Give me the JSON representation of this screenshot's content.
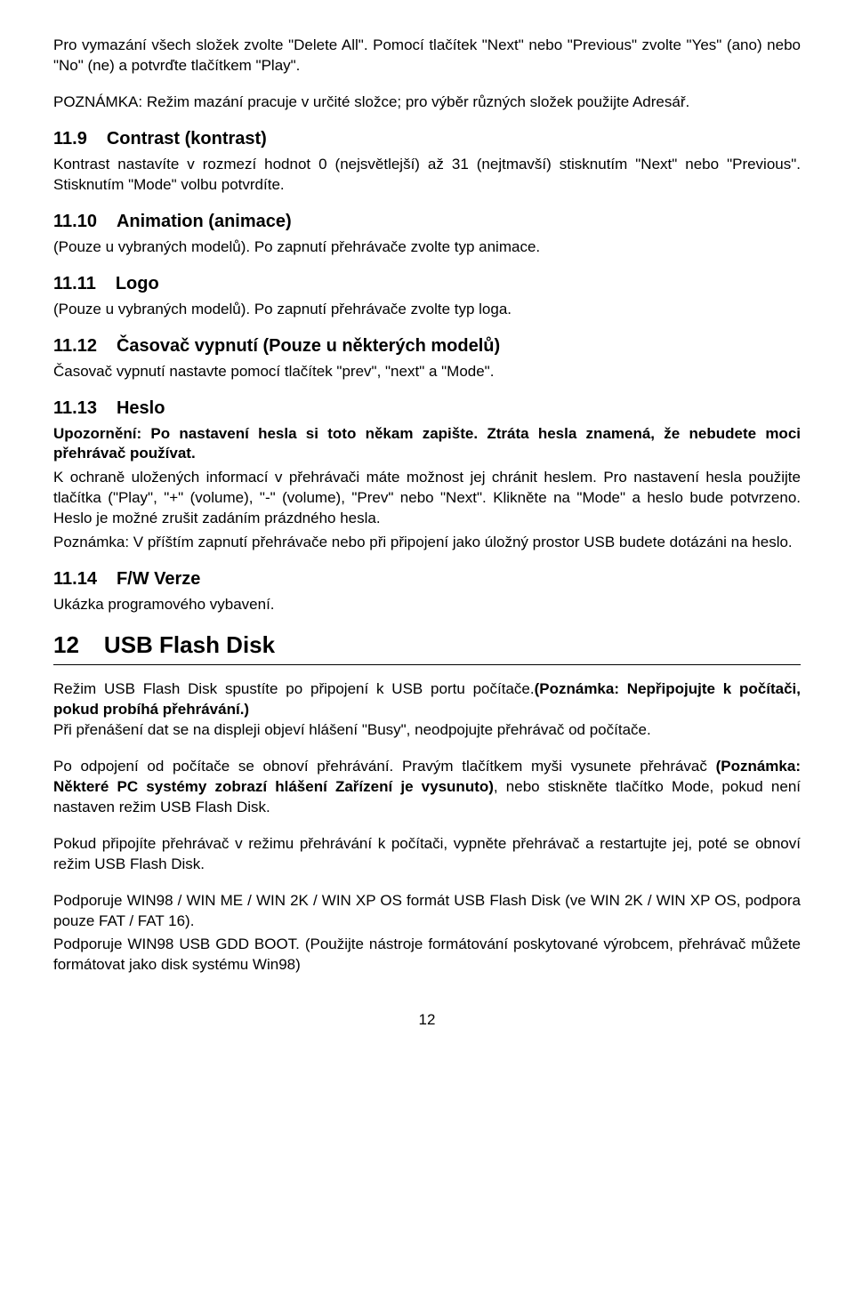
{
  "intro": {
    "p1": "Pro vymazání všech složek zvolte \"Delete All\". Pomocí tlačítek \"Next\" nebo \"Previous\" zvolte \"Yes\" (ano) nebo \"No\" (ne) a potvrďte tlačítkem \"Play\".",
    "p2": "POZNÁMKA: Režim mazání pracuje v určité složce; pro výběr různých složek použijte Adresář."
  },
  "s11_9": {
    "num": "11.9",
    "title": "Contrast (kontrast)",
    "body": "Kontrast nastavíte v rozmezí hodnot 0 (nejsvětlejší) až 31 (nejtmavší) stisknutím \"Next\" nebo \"Previous\". Stisknutím \"Mode\" volbu potvrdíte."
  },
  "s11_10": {
    "num": "11.10",
    "title": "Animation (animace)",
    "body": "(Pouze u vybraných modelů). Po zapnutí přehrávače zvolte typ animace."
  },
  "s11_11": {
    "num": "11.11",
    "title": "Logo",
    "body": "(Pouze u vybraných modelů). Po zapnutí přehrávače zvolte typ loga."
  },
  "s11_12": {
    "num": "11.12",
    "title": "Časovač vypnutí (Pouze u některých modelů)",
    "body": "Časovač vypnutí nastavte pomocí tlačítek \"prev\", \"next\" a \"Mode\"."
  },
  "s11_13": {
    "num": "11.13",
    "title": "Heslo",
    "bold": "Upozornění: Po nastavení hesla si toto někam zapište. Ztráta hesla znamená, že nebudete moci přehrávač používat.",
    "body1": "K ochraně uložených informací v přehrávači máte možnost jej chránit heslem. Pro nastavení hesla použijte tlačítka (\"Play\", \"+\" (volume), \"-\" (volume), \"Prev\" nebo \"Next\". Klikněte na \"Mode\" a heslo bude potvrzeno. Heslo je možné zrušit zadáním prázdného hesla.",
    "body2": "Poznámka: V příštím zapnutí přehrávače nebo při připojení jako úložný prostor USB budete dotázáni na heslo."
  },
  "s11_14": {
    "num": "11.14",
    "title": "F/W Verze",
    "body": "Ukázka programového vybavení."
  },
  "s12": {
    "num": "12",
    "title": "USB Flash Disk",
    "p1a": "Režim USB Flash Disk spustíte po připojení k USB portu počítače.",
    "p1b": "(Poznámka: Nepřipojujte k počítači, pokud probíhá přehrávání.)",
    "p1c": "Při přenášení dat se na displeji objeví hlášení \"Busy\", neodpojujte přehrávač od počítače.",
    "p2a": "Po odpojení od počítače se obnoví přehrávání. Pravým tlačítkem myši vysunete přehrávač ",
    "p2b": "(Poznámka: Některé PC systémy zobrazí hlášení Zařízení je vysunuto)",
    "p2c": ", nebo stiskněte tlačítko Mode, pokud není nastaven režim USB Flash Disk.",
    "p3": "Pokud připojíte přehrávač v režimu přehrávání k počítači, vypněte přehrávač a restartujte jej, poté se obnoví režim USB Flash Disk.",
    "p4": "Podporuje WIN98 / WIN ME / WIN 2K / WIN XP OS formát USB Flash Disk (ve WIN 2K / WIN XP OS, podpora pouze FAT / FAT 16).",
    "p5": "Podporuje WIN98 USB GDD BOOT. (Použijte nástroje formátování poskytované výrobcem, přehrávač můžete formátovat jako disk systému Win98)"
  },
  "pageNumber": "12"
}
